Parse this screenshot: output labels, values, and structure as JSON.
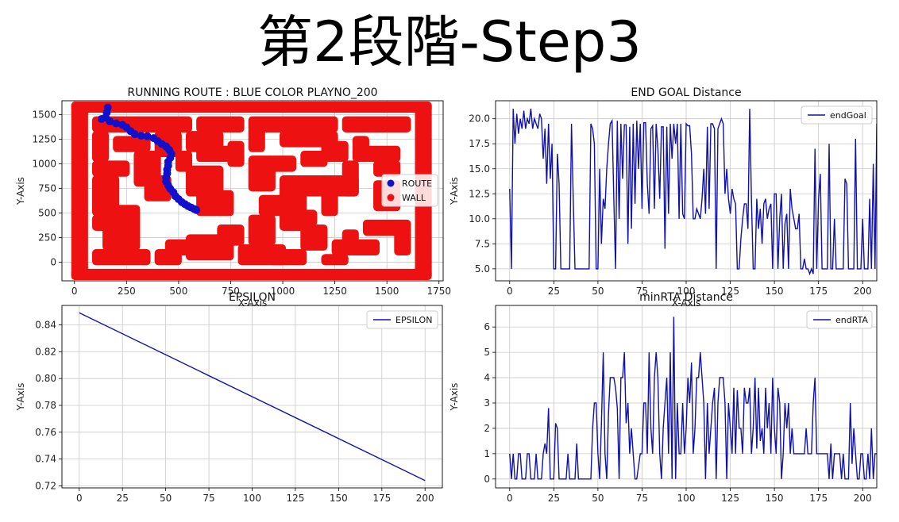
{
  "slide": {
    "title": "第2段階-Step3"
  },
  "colors": {
    "route": "#1111cc",
    "wall": "#ee1111",
    "line": "#1111aa",
    "grid": "#c8c8c8"
  },
  "chart_data": [
    {
      "type": "scatter",
      "title": "RUNNING ROUTE : BLUE COLOR PLAYNO_200",
      "xlabel": "X-Axis",
      "ylabel": "Y-Axis",
      "xlim": [
        -60,
        1770
      ],
      "ylim": [
        -190,
        1640
      ],
      "xticks": [
        0,
        250,
        500,
        750,
        1000,
        1250,
        1500,
        1750
      ],
      "yticks": [
        0,
        250,
        500,
        750,
        1000,
        1250,
        1500
      ],
      "legend_position": "right",
      "series": [
        {
          "name": "WALL",
          "values": [
            [
              0,
              1550,
              1700,
              1600
            ],
            [
              0,
              -150,
              1700,
              -100
            ],
            [
              0,
              -150,
              50,
              1600
            ],
            [
              1650,
              -150,
              1700,
              1600
            ],
            [
              100,
              1350,
              550,
              1450
            ],
            [
              600,
              1350,
              800,
              1450
            ],
            [
              850,
              1350,
              1250,
              1450
            ],
            [
              1300,
              1350,
              1600,
              1450
            ],
            [
              100,
              1050,
              150,
              1300
            ],
            [
              100,
              900,
              250,
              1000
            ],
            [
              100,
              500,
              200,
              850
            ],
            [
              100,
              350,
              150,
              450
            ],
            [
              150,
              150,
              300,
              550
            ],
            [
              100,
              0,
              350,
              100
            ],
            [
              200,
              1150,
              350,
              1250
            ],
            [
              300,
              800,
              400,
              1100
            ],
            [
              350,
              650,
              450,
              850
            ],
            [
              400,
              1100,
              500,
              1300
            ],
            [
              500,
              950,
              550,
              1100
            ],
            [
              550,
              700,
              700,
              950
            ],
            [
              600,
              500,
              750,
              700
            ],
            [
              550,
              1150,
              700,
              1300
            ],
            [
              750,
              1000,
              800,
              1200
            ],
            [
              600,
              1050,
              750,
              1150
            ],
            [
              850,
              1150,
              900,
              1350
            ],
            [
              850,
              750,
              950,
              1050
            ],
            [
              700,
              200,
              800,
              350
            ],
            [
              550,
              50,
              750,
              250
            ],
            [
              400,
              0,
              500,
              100
            ],
            [
              450,
              100,
              550,
              200
            ],
            [
              800,
              0,
              1000,
              150
            ],
            [
              850,
              200,
              950,
              450
            ],
            [
              1000,
              1200,
              1100,
              1300
            ],
            [
              1100,
              1200,
              1250,
              1300
            ],
            [
              950,
              950,
              1050,
              1050
            ],
            [
              1000,
              350,
              1100,
              850
            ],
            [
              1100,
              700,
              1350,
              850
            ],
            [
              1200,
              500,
              1250,
              700
            ],
            [
              1300,
              700,
              1350,
              1000
            ],
            [
              1200,
              1050,
              1300,
              1200
            ],
            [
              1350,
              1050,
              1550,
              1150
            ],
            [
              1350,
              1150,
              1400,
              1250
            ],
            [
              1450,
              900,
              1550,
              1000
            ],
            [
              1450,
              550,
              1550,
              800
            ],
            [
              1400,
              300,
              1600,
              400
            ],
            [
              1550,
              100,
              1600,
              300
            ],
            [
              1100,
              150,
              1200,
              350
            ],
            [
              1250,
              100,
              1450,
              200
            ],
            [
              1300,
              200,
              1350,
              300
            ],
            [
              950,
              0,
              1100,
              100
            ],
            [
              1200,
              0,
              1300,
              50
            ],
            [
              1100,
              1000,
              1200,
              1100
            ],
            [
              900,
              500,
              1000,
              650
            ],
            [
              1100,
              400,
              1150,
              500
            ]
          ]
        },
        {
          "name": "ROUTE",
          "values": [
            [
              160,
              1570
            ],
            [
              155,
              1520
            ],
            [
              150,
              1470
            ],
            [
              130,
              1455
            ],
            [
              170,
              1430
            ],
            [
              200,
              1410
            ],
            [
              230,
              1395
            ],
            [
              250,
              1370
            ],
            [
              270,
              1330
            ],
            [
              290,
              1300
            ],
            [
              320,
              1285
            ],
            [
              350,
              1280
            ],
            [
              380,
              1260
            ],
            [
              400,
              1230
            ],
            [
              420,
              1200
            ],
            [
              440,
              1175
            ],
            [
              455,
              1140
            ],
            [
              465,
              1100
            ],
            [
              460,
              1060
            ],
            [
              450,
              1020
            ],
            [
              450,
              980
            ],
            [
              445,
              940
            ],
            [
              445,
              900
            ],
            [
              440,
              860
            ],
            [
              440,
              820
            ],
            [
              450,
              780
            ],
            [
              460,
              745
            ],
            [
              475,
              710
            ],
            [
              485,
              670
            ],
            [
              500,
              640
            ],
            [
              515,
              610
            ],
            [
              530,
              590
            ],
            [
              545,
              570
            ],
            [
              560,
              555
            ],
            [
              575,
              540
            ],
            [
              585,
              530
            ]
          ]
        }
      ]
    },
    {
      "type": "line",
      "title": "END GOAL Distance",
      "xlabel": "X-Axis",
      "ylabel": "Y-Axis",
      "xlim": [
        -8,
        208
      ],
      "ylim": [
        3.8,
        21.8
      ],
      "xticks": [
        0,
        25,
        50,
        75,
        100,
        125,
        150,
        175,
        200
      ],
      "yticks": [
        5.0,
        7.5,
        10.0,
        12.5,
        15.0,
        17.5,
        20.0
      ],
      "legend_position": "upper right",
      "series": [
        {
          "name": "endGoal",
          "values": [
            13,
            5,
            21,
            17.5,
            20.5,
            18.5,
            20,
            19,
            20.8,
            19,
            20,
            19.5,
            21,
            19,
            20,
            19.5,
            19,
            20.5,
            20,
            16,
            19,
            13.5,
            19.5,
            14,
            17.5,
            5,
            5,
            16.5,
            13.5,
            5,
            5,
            5,
            5,
            5,
            5,
            19.5,
            12,
            5,
            5,
            5,
            5,
            5,
            5,
            5,
            5,
            5,
            19.5,
            19,
            17.5,
            5,
            5,
            15,
            7.5,
            12,
            11,
            15,
            17.5,
            19.5,
            19.8,
            12,
            5,
            19.8,
            10,
            19.5,
            14,
            19.4,
            19.4,
            7.5,
            19.2,
            9,
            19.5,
            11.5,
            19.8,
            15,
            19.5,
            11,
            19.6,
            19.6,
            13.5,
            10.5,
            19,
            19.3,
            11,
            19.5,
            17,
            12,
            19.2,
            19.2,
            7,
            19.2,
            10.5,
            19.5,
            16,
            19.5,
            17.5,
            19.5,
            10,
            19.5,
            10.5,
            10,
            19.5,
            19.3,
            19.3,
            16.5,
            10,
            10,
            11,
            10.5,
            10,
            12,
            15,
            10.5,
            19.2,
            11,
            19.5,
            19.5,
            19,
            5,
            19,
            19.5,
            20,
            19.5,
            12.5,
            15,
            12,
            10.5,
            13,
            12,
            11.5,
            5,
            5,
            8,
            10,
            11.5,
            11.5,
            9,
            21,
            12,
            5,
            5,
            12,
            9,
            11,
            7.5,
            11.5,
            12,
            10,
            11,
            11.5,
            5,
            12.5,
            12.5,
            5,
            10,
            12.5,
            5,
            9.5,
            10.5,
            5,
            13,
            11,
            10,
            9,
            9,
            10.5,
            5,
            5,
            6,
            5,
            5,
            4.5,
            5,
            4.5,
            17,
            5,
            12,
            14.5,
            5,
            5,
            5,
            5,
            17.5,
            5,
            5,
            10,
            5,
            5,
            5,
            5,
            5,
            14,
            13.5,
            5,
            5,
            5,
            5,
            18,
            5,
            5,
            5,
            10,
            5,
            5,
            5,
            12,
            5,
            15.5,
            5,
            19.5,
            5,
            5
          ]
        }
      ]
    },
    {
      "type": "line",
      "title": "EPSILON",
      "xlabel": "",
      "ylabel": "Y-Axis",
      "xlim": [
        -10,
        210
      ],
      "ylim": [
        0.7185,
        0.8545
      ],
      "xticks": [
        0,
        25,
        50,
        75,
        100,
        125,
        150,
        175,
        200
      ],
      "yticks": [
        0.72,
        0.74,
        0.76,
        0.78,
        0.8,
        0.82,
        0.84
      ],
      "legend_position": "upper right",
      "series": [
        {
          "name": "EPSILON",
          "x": [
            0,
            200
          ],
          "values": [
            0.849,
            0.724
          ]
        }
      ]
    },
    {
      "type": "line",
      "title": "minRTA Distance",
      "xlabel": "",
      "ylabel": "Y-Axis",
      "xlim": [
        -8,
        208
      ],
      "ylim": [
        -0.35,
        6.85
      ],
      "xticks": [
        0,
        25,
        50,
        75,
        100,
        125,
        150,
        175,
        200
      ],
      "yticks": [
        0,
        1,
        2,
        3,
        4,
        5,
        6
      ],
      "legend_position": "upper right",
      "series": [
        {
          "name": "endRTA",
          "values": [
            1,
            0,
            1,
            0,
            0,
            1,
            1,
            0,
            0,
            0,
            1,
            1,
            0,
            0,
            0,
            1,
            0,
            0,
            0,
            1,
            1.4,
            1,
            2.8,
            0,
            0,
            0,
            2.2,
            2,
            0,
            0,
            0,
            0,
            0,
            1,
            0,
            0,
            0,
            0,
            1.4,
            0,
            0,
            0,
            0,
            0,
            0,
            0,
            0,
            2,
            3,
            3,
            1,
            0,
            2.2,
            5,
            1,
            0,
            2.6,
            4,
            4,
            4,
            3.6,
            2.8,
            0,
            4,
            4,
            5,
            2.2,
            3,
            1,
            2,
            1,
            0,
            0,
            0.5,
            1,
            1,
            3,
            3,
            1,
            5,
            2,
            1,
            4,
            5,
            4,
            1,
            0,
            2,
            3,
            4,
            1,
            5,
            0,
            6.4,
            0,
            3,
            1,
            1,
            3,
            1,
            2,
            4,
            3,
            4.6,
            1,
            2,
            4,
            4,
            5,
            4,
            3,
            0,
            3,
            1,
            2,
            3,
            3.6,
            0,
            3,
            4,
            4,
            4,
            3,
            0,
            3,
            2,
            1,
            3.6,
            1,
            3.5,
            2,
            2,
            1,
            3.6,
            3,
            3,
            3.6,
            1,
            2,
            4,
            1.2,
            3.6,
            1.5,
            2,
            1,
            3.6,
            2,
            3,
            1,
            4,
            2,
            1,
            3.6,
            3,
            0,
            1,
            3,
            2,
            3,
            1,
            2,
            1,
            1,
            1,
            1,
            1,
            1,
            1,
            2,
            1,
            1,
            1,
            3,
            4,
            1,
            1,
            1,
            1,
            1,
            1,
            1,
            0,
            1.4,
            0,
            1,
            1,
            1,
            1,
            0,
            1,
            0,
            0,
            0,
            3,
            0.6,
            2,
            1,
            0,
            0,
            1,
            1,
            0,
            0,
            1,
            0,
            2,
            0,
            1,
            1,
            1
          ]
        }
      ]
    }
  ]
}
